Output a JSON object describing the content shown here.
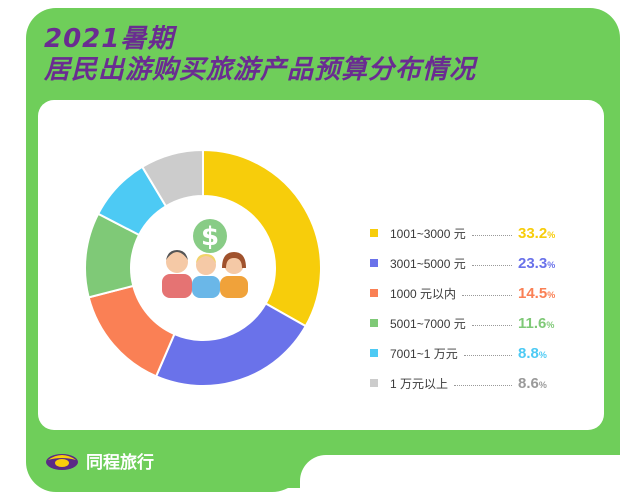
{
  "title_lines": [
    "2021暑期",
    "居民出游购买旅游产品预算分布情况"
  ],
  "brand": {
    "logo_icon": "tongcheng-logo-icon",
    "name": "同程旅行"
  },
  "colors": {
    "background_green": "#6fce5a",
    "title_purple": "#6a2c91"
  },
  "chart_data": {
    "type": "pie",
    "style": "donut",
    "unit": "%",
    "slices": [
      {
        "label": "1001~3000 元",
        "value": 33.2,
        "color": "#f7cd0b"
      },
      {
        "label": "3001~5000 元",
        "value": 23.3,
        "color": "#6a72ea"
      },
      {
        "label": "1000 元以内",
        "value": 14.5,
        "color": "#fa8055"
      },
      {
        "label": "5001~7000 元",
        "value": 11.6,
        "color": "#7fc977"
      },
      {
        "label": "7001~1 万元",
        "value": 8.8,
        "color": "#4dcaf4"
      },
      {
        "label": "1 万元以上",
        "value": 8.6,
        "color": "#cccccc"
      }
    ],
    "legend_position": "right",
    "center_icon": "people-money-icon"
  }
}
